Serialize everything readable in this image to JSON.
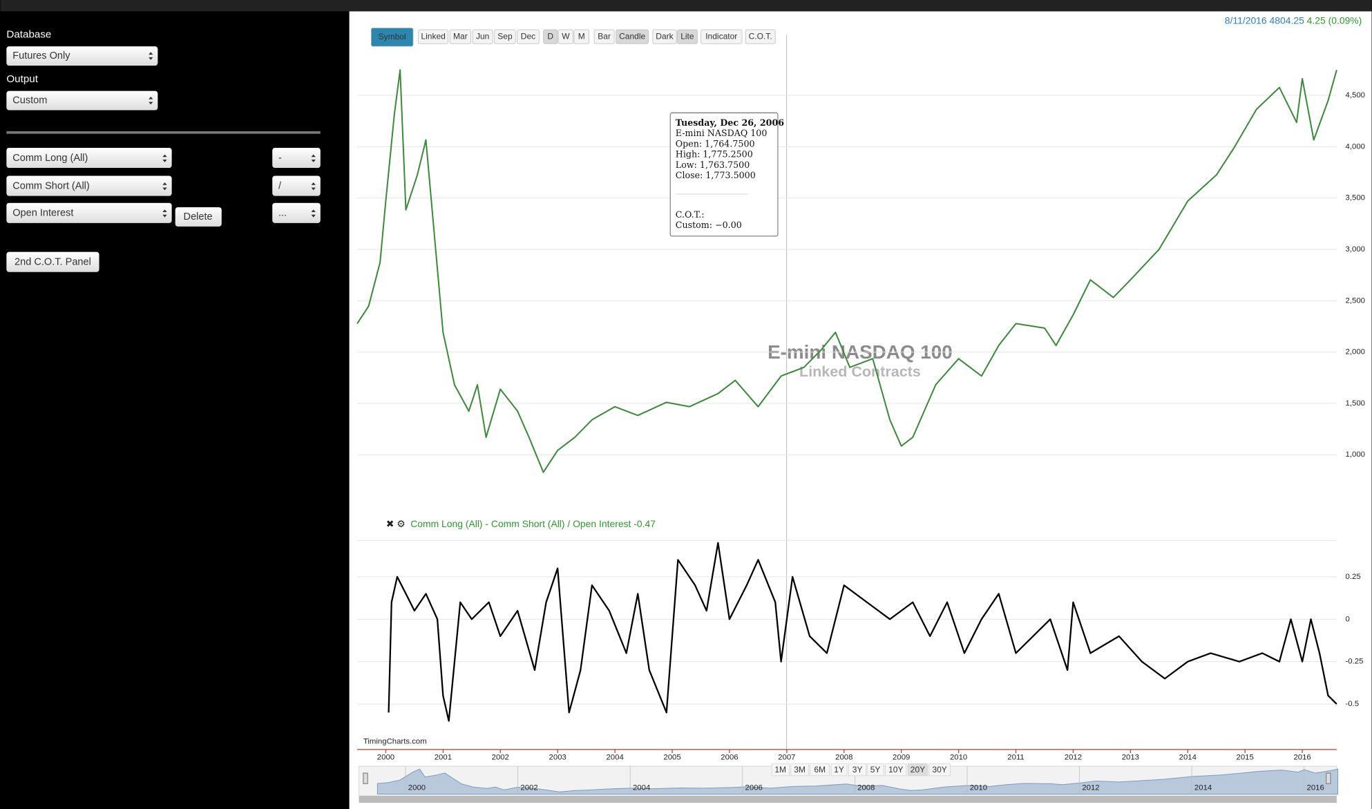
{
  "top_quote": {
    "date": "8/11/2016",
    "price": "4804.25",
    "change": "4.25 (0.09%)"
  },
  "sidebar": {
    "database_label": "Database",
    "database": "Futures Only",
    "output_label": "Output",
    "output": "Custom",
    "rows": [
      {
        "field": "Comm Long (All)",
        "op": "-"
      },
      {
        "field": "Comm Short (All)",
        "op": "/"
      },
      {
        "field": "Open Interest",
        "op": "..."
      }
    ],
    "delete": "Delete",
    "second_panel": "2nd C.O.T. Panel"
  },
  "toolbar": [
    "Symbol",
    "Linked",
    "Mar",
    "Jun",
    "Sep",
    "Dec",
    "D",
    "W",
    "M",
    "Bar",
    "Candle",
    "Dark",
    "Lite",
    "Indicator",
    "C.O.T."
  ],
  "chart_data": [
    {
      "type": "line",
      "title": "E-mini NASDAQ 100",
      "subtitle": "Linked Contracts",
      "credit": "TimingCharts.com",
      "color": "#3a8a3a",
      "x": [
        1999.5,
        1999.7,
        1999.9,
        2000.0,
        2000.15,
        2000.25,
        2000.35,
        2000.55,
        2000.7,
        2000.85,
        2001.0,
        2001.2,
        2001.45,
        2001.6,
        2001.75,
        2002.0,
        2002.3,
        2002.5,
        2002.75,
        2003.0,
        2003.3,
        2003.6,
        2004.0,
        2004.4,
        2004.9,
        2005.3,
        2005.8,
        2006.1,
        2006.5,
        2006.9,
        2007.3,
        2007.6,
        2007.85,
        2008.1,
        2008.5,
        2008.8,
        2009.0,
        2009.2,
        2009.6,
        2010.0,
        2010.4,
        2010.7,
        2011.0,
        2011.5,
        2011.7,
        2012.0,
        2012.3,
        2012.7,
        2013.0,
        2013.5,
        2014.0,
        2014.5,
        2014.8,
        2015.2,
        2015.6,
        2015.9,
        2016.0,
        2016.2,
        2016.45,
        2016.6
      ],
      "values": [
        2277,
        2447,
        2873,
        3470,
        4321,
        4747,
        3384,
        3725,
        4066,
        3129,
        2192,
        1681,
        1425,
        1681,
        1170,
        1638,
        1425,
        1170,
        829,
        1042,
        1170,
        1340,
        1468,
        1383,
        1511,
        1468,
        1596,
        1724,
        1468,
        1766,
        1851,
        2021,
        2192,
        1851,
        1936,
        1340,
        1085,
        1170,
        1681,
        1936,
        1766,
        2064,
        2277,
        2234,
        2064,
        2362,
        2703,
        2532,
        2703,
        3001,
        3470,
        3725,
        3981,
        4364,
        4577,
        4236,
        4662,
        4066,
        4449,
        4747
      ],
      "xlim": [
        1999.5,
        2016.6
      ],
      "xticks": [
        2000,
        2001,
        2002,
        2003,
        2004,
        2005,
        2006,
        2007,
        2008,
        2009,
        2010,
        2011,
        2012,
        2013,
        2014,
        2015,
        2016
      ],
      "ylim": [
        446,
        4960
      ],
      "yticks": [
        {
          "value": 1000,
          "label": "1,000"
        },
        {
          "value": 1500,
          "label": "1,500"
        },
        {
          "value": 2000,
          "label": "2,000"
        },
        {
          "value": 2500,
          "label": "2,500"
        },
        {
          "value": 3000,
          "label": "3,000"
        },
        {
          "value": 3500,
          "label": "3,500"
        },
        {
          "value": 4000,
          "label": "4,000"
        },
        {
          "value": 4500,
          "label": "4,500"
        }
      ],
      "grid": true,
      "tooltip": {
        "date": "Tuesday, Dec 26, 2006",
        "name": "E-mini NASDAQ 100",
        "lines": [
          "Open: 1,764.7500",
          "High: 1,775.2500",
          "Low: 1,763.7500",
          "Close: 1,773.5000"
        ],
        "cot": "C.O.T.:",
        "custom": "Custom: −0.00"
      }
    },
    {
      "type": "line",
      "label": "Comm Long (All) - Comm Short (All) / Open Interest -0.47",
      "color": "#000000",
      "x": [
        2000.05,
        2000.1,
        2000.2,
        2000.35,
        2000.5,
        2000.7,
        2000.9,
        2001.0,
        2001.1,
        2001.3,
        2001.5,
        2001.8,
        2002.0,
        2002.3,
        2002.6,
        2002.8,
        2003.0,
        2003.2,
        2003.4,
        2003.6,
        2003.9,
        2004.2,
        2004.4,
        2004.6,
        2004.9,
        2005.1,
        2005.4,
        2005.6,
        2005.8,
        2006.0,
        2006.3,
        2006.5,
        2006.8,
        2006.9,
        2007.1,
        2007.4,
        2007.7,
        2008.0,
        2008.4,
        2008.8,
        2009.2,
        2009.5,
        2009.8,
        2010.1,
        2010.4,
        2010.7,
        2011.0,
        2011.3,
        2011.6,
        2011.9,
        2012.0,
        2012.3,
        2012.8,
        2013.2,
        2013.6,
        2014.0,
        2014.4,
        2014.9,
        2015.3,
        2015.6,
        2015.8,
        2016.0,
        2016.15,
        2016.3,
        2016.45,
        2016.6
      ],
      "values": [
        -0.55,
        0.1,
        0.25,
        0.15,
        0.05,
        0.15,
        0.0,
        -0.45,
        -0.6,
        0.1,
        0.0,
        0.1,
        -0.1,
        0.05,
        -0.3,
        0.1,
        0.3,
        -0.55,
        -0.3,
        0.2,
        0.05,
        -0.2,
        0.15,
        -0.3,
        -0.55,
        0.35,
        0.2,
        0.05,
        0.45,
        0.0,
        0.2,
        0.35,
        0.1,
        -0.25,
        0.25,
        -0.1,
        -0.2,
        0.2,
        0.1,
        0.0,
        0.1,
        -0.1,
        0.1,
        -0.2,
        0.0,
        0.15,
        -0.2,
        -0.1,
        0.0,
        -0.3,
        0.1,
        -0.2,
        -0.1,
        -0.25,
        -0.35,
        -0.25,
        -0.2,
        -0.25,
        -0.2,
        -0.25,
        0.0,
        -0.25,
        0.0,
        -0.2,
        -0.45,
        -0.5
      ],
      "ylim": [
        -0.706,
        0.464
      ],
      "yticks": [
        -0.5,
        -0.25,
        0,
        0.25
      ],
      "grid": true
    },
    {
      "type": "area",
      "color": "#b8c9dc",
      "xlim": [
        1999.17,
        2016.58
      ],
      "xticks": [
        2000,
        2002,
        2004,
        2006,
        2008,
        2010,
        2012,
        2014,
        2016
      ],
      "range_buttons": [
        "1M",
        "3M",
        "6M",
        "1Y",
        "3Y",
        "5Y",
        "10Y",
        "20Y",
        "30Y"
      ]
    }
  ]
}
